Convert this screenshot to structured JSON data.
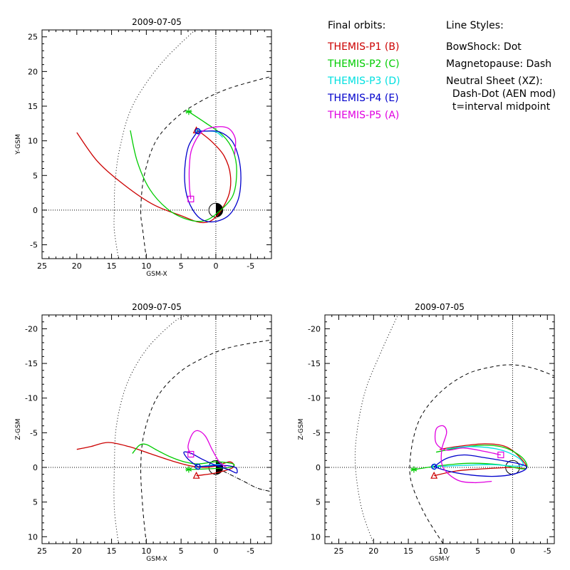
{
  "legend": {
    "orbits_title": "Final orbits:",
    "styles_title": "Line Styles:",
    "probes": [
      {
        "label": "THEMIS-P1 (B)",
        "color": "#cc0000"
      },
      {
        "label": "THEMIS-P2 (C)",
        "color": "#00cc00"
      },
      {
        "label": "THEMIS-P3 (D)",
        "color": "#00e0e0"
      },
      {
        "label": "THEMIS-P4 (E)",
        "color": "#0000cc"
      },
      {
        "label": "THEMIS-P5 (A)",
        "color": "#e000e0"
      }
    ],
    "styles": [
      "BowShock: Dot",
      "Magnetopause: Dash",
      "Neutral Sheet (XZ):",
      "  Dash-Dot (AEN mod)",
      "  t=interval midpoint"
    ]
  },
  "chart_data": [
    {
      "type": "line",
      "title": "2009-07-05",
      "xlabel": "GSM-X",
      "ylabel": "Y-GSM",
      "xlim": [
        25,
        -8
      ],
      "ylim": [
        26,
        -7
      ],
      "xticks": [
        25,
        20,
        15,
        10,
        5,
        0,
        -5
      ],
      "yticks": [
        -5,
        0,
        5,
        10,
        15,
        20,
        25
      ],
      "bowshock": [
        [
          14,
          -7
        ],
        [
          14.6,
          -3
        ],
        [
          14.6,
          0
        ],
        [
          14.5,
          4
        ],
        [
          13.8,
          9
        ],
        [
          12,
          15
        ],
        [
          8,
          21
        ],
        [
          3,
          26
        ]
      ],
      "magnetopause": [
        [
          10,
          -7
        ],
        [
          10.5,
          -3
        ],
        [
          10.8,
          0
        ],
        [
          10.3,
          5
        ],
        [
          8.6,
          10
        ],
        [
          5.5,
          13.5
        ],
        [
          2,
          15.8
        ],
        [
          -2,
          17.6
        ],
        [
          -8,
          19.3
        ]
      ],
      "series": [
        {
          "name": "THEMIS-P1 (B)",
          "color": "#cc0000",
          "marker": "triangle",
          "marker_at": [
            2.8,
            11.5
          ],
          "points": [
            [
              20,
              11.2
            ],
            [
              17,
              7
            ],
            [
              13,
              3.5
            ],
            [
              9,
              0.8
            ],
            [
              5,
              -0.8
            ],
            [
              2,
              -1.8
            ],
            [
              0,
              -1
            ],
            [
              -1.8,
              2
            ],
            [
              -2.1,
              5
            ],
            [
              -1.2,
              7.8
            ],
            [
              0.5,
              9.8
            ],
            [
              2.2,
              11.2
            ],
            [
              2.8,
              11.5
            ]
          ]
        },
        {
          "name": "THEMIS-P2 (C)",
          "color": "#00cc00",
          "marker": "asterisk",
          "marker_at": [
            3.9,
            14.2
          ],
          "points": [
            [
              12.3,
              11.5
            ],
            [
              11.3,
              7
            ],
            [
              9.5,
              3
            ],
            [
              7,
              0.2
            ],
            [
              4.5,
              -1.2
            ],
            [
              2,
              -1.6
            ],
            [
              0,
              -0.6
            ],
            [
              -2.4,
              2
            ],
            [
              -3,
              5.5
            ],
            [
              -2.5,
              8.5
            ],
            [
              -1,
              10.8
            ],
            [
              1.5,
              12.6
            ],
            [
              3.9,
              14.2
            ]
          ]
        },
        {
          "name": "THEMIS-P3 (D)",
          "color": "#00e0e0",
          "marker": "diamond",
          "marker_at": [
            2.5,
            11.3
          ],
          "points": [
            [
              2.5,
              11.3
            ],
            [
              1.5,
              11.4
            ],
            [
              0,
              11.3
            ],
            [
              -1,
              10.5
            ]
          ]
        },
        {
          "name": "THEMIS-P4 (E)",
          "color": "#0000cc",
          "marker": "circle",
          "marker_at": [
            2.6,
            11.4
          ],
          "points": [
            [
              2.6,
              11.4
            ],
            [
              4,
              9
            ],
            [
              4.5,
              5
            ],
            [
              4,
              1.5
            ],
            [
              2.5,
              -1
            ],
            [
              0.5,
              -1.7
            ],
            [
              -1.8,
              -0.8
            ],
            [
              -3.2,
              1.5
            ],
            [
              -3.6,
              4.5
            ],
            [
              -3.3,
              7.5
            ],
            [
              -2.3,
              10
            ],
            [
              -0.5,
              11.3
            ],
            [
              1.5,
              11.4
            ],
            [
              2.6,
              11.4
            ]
          ]
        },
        {
          "name": "THEMIS-P5 (A)",
          "color": "#e000e0",
          "marker": "square",
          "marker_at": [
            3.6,
            1.6
          ],
          "points": [
            [
              3.6,
              1.6
            ],
            [
              3.8,
              3.5
            ],
            [
              3.8,
              6.5
            ],
            [
              3.4,
              9
            ],
            [
              2,
              11.3
            ],
            [
              0,
              12
            ],
            [
              -1.8,
              11.8
            ],
            [
              -2.8,
              10.3
            ],
            [
              -2.7,
              8
            ]
          ]
        }
      ]
    },
    {
      "type": "line",
      "title": "2009-07-05",
      "xlabel": "GSM-X",
      "ylabel": "Z-GSM",
      "xlim": [
        25,
        -8
      ],
      "ylim": [
        -22,
        11
      ],
      "xticks": [
        25,
        20,
        15,
        10,
        5,
        0,
        -5
      ],
      "yticks": [
        10,
        5,
        0,
        -5,
        -10,
        -15,
        -20
      ],
      "bowshock": [
        [
          14,
          11
        ],
        [
          14.6,
          6
        ],
        [
          14.6,
          0
        ],
        [
          14.3,
          -6
        ],
        [
          12.8,
          -12
        ],
        [
          10,
          -17
        ],
        [
          6,
          -21
        ],
        [
          4,
          -22
        ]
      ],
      "magnetopause": [
        [
          10,
          11
        ],
        [
          10.5,
          6
        ],
        [
          10.8,
          0
        ],
        [
          10.3,
          -5
        ],
        [
          8.5,
          -10
        ],
        [
          5.5,
          -13.5
        ],
        [
          2,
          -15.7
        ],
        [
          -2,
          -17.3
        ],
        [
          -8,
          -18.4
        ]
      ],
      "neutral_sheet": [
        [
          0,
          0
        ],
        [
          -2,
          1
        ],
        [
          -4,
          2
        ],
        [
          -6,
          3
        ],
        [
          -8,
          3.5
        ]
      ],
      "series": [
        {
          "name": "THEMIS-P1 (B)",
          "color": "#cc0000",
          "marker": "triangle",
          "marker_at": [
            2.8,
            1.2
          ],
          "points": [
            [
              20,
              -2.6
            ],
            [
              18,
              -3
            ],
            [
              15.5,
              -3.6
            ],
            [
              12.5,
              -3
            ],
            [
              9.5,
              -2
            ],
            [
              6.5,
              -1
            ],
            [
              4,
              -0.3
            ],
            [
              2,
              0
            ],
            [
              0,
              -0.2
            ],
            [
              -2,
              -0.8
            ],
            [
              -2.5,
              0
            ],
            [
              0,
              0.8
            ],
            [
              2.8,
              1.2
            ]
          ]
        },
        {
          "name": "THEMIS-P2 (C)",
          "color": "#00cc00",
          "marker": "asterisk",
          "marker_at": [
            3.9,
            0.3
          ],
          "points": [
            [
              12,
              -2
            ],
            [
              11,
              -3.2
            ],
            [
              10,
              -3.3
            ],
            [
              8.5,
              -2.5
            ],
            [
              6.5,
              -1.5
            ],
            [
              4.5,
              -0.8
            ],
            [
              2.5,
              -0.5
            ],
            [
              0,
              -0.8
            ],
            [
              -2.5,
              -0.5
            ],
            [
              -2,
              0
            ],
            [
              1,
              0.2
            ],
            [
              3.9,
              0.3
            ]
          ]
        },
        {
          "name": "THEMIS-P3 (D)",
          "color": "#00e0e0",
          "marker": "diamond",
          "marker_at": [
            2.5,
            -0.1
          ],
          "points": [
            [
              2.5,
              -0.1
            ],
            [
              1,
              -0.3
            ],
            [
              -1,
              -0.5
            ]
          ]
        },
        {
          "name": "THEMIS-P4 (E)",
          "color": "#0000cc",
          "marker": "circle",
          "marker_at": [
            2.6,
            -0.1
          ],
          "points": [
            [
              2.6,
              -0.1
            ],
            [
              4,
              -1.2
            ],
            [
              4.6,
              -2.2
            ],
            [
              3.5,
              -2
            ],
            [
              2,
              -1.2
            ],
            [
              0,
              -0.3
            ],
            [
              -2,
              0.4
            ],
            [
              -3,
              0.8
            ],
            [
              -2.8,
              0
            ],
            [
              -1,
              -0.3
            ],
            [
              1,
              -0.2
            ],
            [
              2.6,
              -0.1
            ]
          ]
        },
        {
          "name": "THEMIS-P5 (A)",
          "color": "#e000e0",
          "marker": "square",
          "marker_at": [
            3.6,
            -1.9
          ],
          "points": [
            [
              3.6,
              -1.9
            ],
            [
              4,
              -3
            ],
            [
              3.4,
              -4.8
            ],
            [
              2.6,
              -5.3
            ],
            [
              1.5,
              -4.5
            ],
            [
              0.5,
              -2.5
            ],
            [
              -0.5,
              -0.8
            ],
            [
              -1.5,
              0
            ]
          ]
        }
      ]
    },
    {
      "type": "line",
      "title": "2009-07-05",
      "xlabel": "GSM-Y",
      "ylabel": "Z-GSM",
      "xlim": [
        27,
        -6
      ],
      "ylim": [
        -22,
        11
      ],
      "xticks": [
        25,
        20,
        15,
        10,
        5,
        0,
        -5
      ],
      "yticks": [
        10,
        5,
        0,
        -5,
        -10,
        -15,
        -20
      ],
      "bowshock": [
        [
          20,
          11
        ],
        [
          21.7,
          6
        ],
        [
          22.6,
          0
        ],
        [
          22.4,
          -5
        ],
        [
          21.2,
          -11
        ],
        [
          19,
          -16.5
        ],
        [
          16.5,
          -22
        ]
      ],
      "magnetopause": [
        [
          10,
          11
        ],
        [
          12.5,
          7
        ],
        [
          14.3,
          3
        ],
        [
          14.8,
          0
        ],
        [
          14.2,
          -4.5
        ],
        [
          12.8,
          -8
        ],
        [
          10,
          -11.2
        ],
        [
          6.5,
          -13.5
        ],
        [
          3,
          -14.5
        ],
        [
          0,
          -14.8
        ],
        [
          -3,
          -14.3
        ],
        [
          -6,
          -13.2
        ]
      ],
      "earth_circle": {
        "cx": 0,
        "cy": 0,
        "r": 1
      },
      "series": [
        {
          "name": "THEMIS-P1 (B)",
          "color": "#cc0000",
          "marker": "triangle",
          "marker_at": [
            11.3,
            1.2
          ],
          "points": [
            [
              11.3,
              1.2
            ],
            [
              8,
              0.5
            ],
            [
              4,
              0.2
            ],
            [
              0,
              0
            ],
            [
              -2,
              0.1
            ],
            [
              -1,
              -1.5
            ],
            [
              1,
              -3
            ],
            [
              4,
              -3.4
            ],
            [
              8,
              -3
            ],
            [
              10.5,
              -2.6
            ]
          ]
        },
        {
          "name": "THEMIS-P2 (C)",
          "color": "#00cc00",
          "marker": "asterisk",
          "marker_at": [
            14.2,
            0.3
          ],
          "points": [
            [
              14.2,
              0.3
            ],
            [
              10,
              -0.3
            ],
            [
              6,
              -0.6
            ],
            [
              2,
              -0.4
            ],
            [
              -1.8,
              0.2
            ],
            [
              -1.5,
              -1.3
            ],
            [
              1,
              -2.8
            ],
            [
              4,
              -3.2
            ],
            [
              8,
              -2.8
            ],
            [
              11,
              -2.2
            ]
          ]
        },
        {
          "name": "THEMIS-P3 (D)",
          "color": "#00e0e0",
          "marker": "diamond",
          "marker_at": [
            11.2,
            -0.1
          ],
          "points": [
            [
              11.2,
              -0.1
            ],
            [
              7,
              -0.3
            ],
            [
              3,
              -0.4
            ],
            [
              0,
              -0.2
            ],
            [
              -1.5,
              -0.3
            ],
            [
              -0.8,
              -1.4
            ],
            [
              2,
              -2.6
            ],
            [
              6,
              -3
            ],
            [
              9.5,
              -2.7
            ]
          ]
        },
        {
          "name": "THEMIS-P4 (E)",
          "color": "#0000cc",
          "marker": "circle",
          "marker_at": [
            11.3,
            -0.1
          ],
          "points": [
            [
              11.3,
              -0.1
            ],
            [
              9,
              0.6
            ],
            [
              6,
              1.1
            ],
            [
              3,
              1.3
            ],
            [
              0.5,
              1.1
            ],
            [
              -1.5,
              0.5
            ],
            [
              -2,
              -0.1
            ],
            [
              -1,
              -0.5
            ],
            [
              1,
              -0.9
            ],
            [
              4,
              -1.4
            ],
            [
              7,
              -1.8
            ],
            [
              9.5,
              -1.3
            ],
            [
              11.3,
              -0.1
            ]
          ]
        },
        {
          "name": "THEMIS-P5 (A)",
          "color": "#e000e0",
          "marker": "square",
          "marker_at": [
            1.7,
            -1.8
          ],
          "points": [
            [
              1.7,
              -1.8
            ],
            [
              4,
              -2.3
            ],
            [
              7,
              -2.8
            ],
            [
              9.5,
              -2.5
            ],
            [
              11,
              -3.5
            ],
            [
              11,
              -5.5
            ],
            [
              10,
              -6
            ],
            [
              9.5,
              -5
            ],
            [
              10.2,
              -2.5
            ],
            [
              10,
              0
            ],
            [
              8,
              1.8
            ],
            [
              5.5,
              2.2
            ],
            [
              3,
              2
            ]
          ]
        }
      ]
    }
  ]
}
